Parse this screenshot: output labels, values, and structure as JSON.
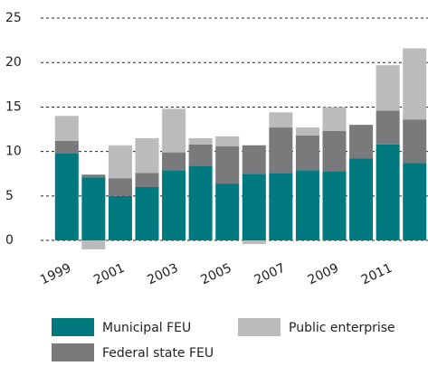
{
  "chart_data": {
    "type": "stacked-bar",
    "categories": [
      "1999",
      null,
      "2001",
      null,
      "2003",
      null,
      "2005",
      null,
      "2007",
      null,
      "2009",
      null,
      "2011",
      null
    ],
    "series": [
      {
        "name": "Municipal FEU",
        "color": "#00797f",
        "values": [
          9.8,
          7.1,
          5.0,
          6.0,
          7.9,
          8.4,
          6.4,
          7.5,
          7.6,
          7.9,
          7.8,
          9.2,
          10.8,
          8.7
        ]
      },
      {
        "name": "Federal state FEU",
        "color": "#7a7a7c",
        "values": [
          1.4,
          0.3,
          2.0,
          1.6,
          2.0,
          2.4,
          4.2,
          3.2,
          5.1,
          3.9,
          4.5,
          3.8,
          3.8,
          4.9
        ]
      },
      {
        "name": "Public enterprise",
        "color": "#bbbbbe",
        "values": [
          2.8,
          -1.0,
          3.7,
          3.9,
          4.9,
          0.7,
          1.1,
          -0.4,
          1.7,
          0.9,
          2.7,
          0,
          5.1,
          8.0
        ]
      }
    ],
    "ylim": [
      -1.5,
      26
    ],
    "yticks": [
      0,
      5,
      10,
      15,
      20,
      25
    ],
    "grid": true
  }
}
